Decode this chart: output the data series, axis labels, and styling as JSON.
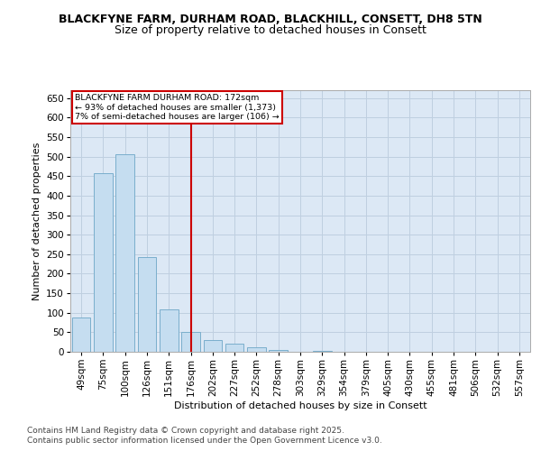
{
  "title1": "BLACKFYNE FARM, DURHAM ROAD, BLACKHILL, CONSETT, DH8 5TN",
  "title2": "Size of property relative to detached houses in Consett",
  "xlabel": "Distribution of detached houses by size in Consett",
  "ylabel": "Number of detached properties",
  "categories": [
    "49sqm",
    "75sqm",
    "100sqm",
    "126sqm",
    "151sqm",
    "176sqm",
    "202sqm",
    "227sqm",
    "252sqm",
    "278sqm",
    "303sqm",
    "329sqm",
    "354sqm",
    "379sqm",
    "405sqm",
    "430sqm",
    "455sqm",
    "481sqm",
    "506sqm",
    "532sqm",
    "557sqm"
  ],
  "values": [
    88,
    458,
    507,
    243,
    108,
    50,
    30,
    20,
    12,
    4,
    0,
    2,
    0,
    0,
    0,
    0,
    1,
    0,
    0,
    0,
    1
  ],
  "bar_color": "#c5ddf0",
  "bar_edge_color": "#7aaecc",
  "vline_x_index": 5,
  "vline_color": "#cc0000",
  "annotation_text1": "BLACKFYNE FARM DURHAM ROAD: 172sqm",
  "annotation_text2": "← 93% of detached houses are smaller (1,373)",
  "annotation_text3": "7% of semi-detached houses are larger (106) →",
  "annotation_box_color": "#cc0000",
  "ylim": [
    0,
    670
  ],
  "yticks": [
    0,
    50,
    100,
    150,
    200,
    250,
    300,
    350,
    400,
    450,
    500,
    550,
    600,
    650
  ],
  "background_color": "#ffffff",
  "plot_bg_color": "#dce8f5",
  "grid_color": "#bfcfe0",
  "footer1": "Contains HM Land Registry data © Crown copyright and database right 2025.",
  "footer2": "Contains public sector information licensed under the Open Government Licence v3.0.",
  "title1_fontsize": 9,
  "title2_fontsize": 9,
  "axis_label_fontsize": 8,
  "tick_fontsize": 7.5,
  "annotation_fontsize": 6.8,
  "footer_fontsize": 6.5
}
